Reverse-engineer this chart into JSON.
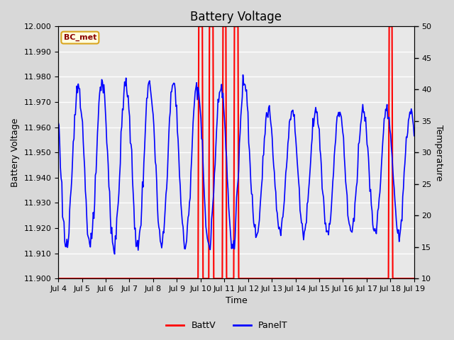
{
  "title": "Battery Voltage",
  "xlabel": "Time",
  "ylabel_left": "Battery Voltage",
  "ylabel_right": "Temperature",
  "annotation": "BC_met",
  "ylim_left": [
    11.9,
    12.0
  ],
  "ylim_right": [
    10,
    50
  ],
  "yticks_left": [
    11.9,
    11.91,
    11.92,
    11.93,
    11.94,
    11.95,
    11.96,
    11.97,
    11.98,
    11.99,
    12.0
  ],
  "yticks_right": [
    10,
    15,
    20,
    25,
    30,
    35,
    40,
    45,
    50
  ],
  "xtick_labels": [
    "Jul 4",
    "Jul 5",
    "Jul 6",
    "Jul 7",
    "Jul 8",
    "Jul 9",
    "Jul 10",
    "Jul 11",
    "Jul 12",
    "Jul 13",
    "Jul 14",
    "Jul 15",
    "Jul 16",
    "Jul 17",
    "Jul 18",
    "Jul 19"
  ],
  "bg_color": "#d8d8d8",
  "plot_bg_color": "#e8e8e8",
  "grid_color": "white",
  "battv_color": "red",
  "panelt_color": "blue",
  "vline_positions": [
    6.0,
    6.45,
    7.0,
    7.5,
    14.0
  ],
  "title_fontsize": 12,
  "axis_label_fontsize": 9,
  "tick_fontsize": 8,
  "xlim": [
    0,
    15
  ],
  "n_points": 500
}
